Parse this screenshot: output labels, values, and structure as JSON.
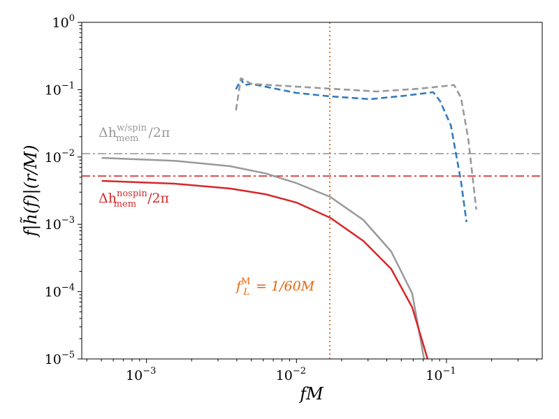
{
  "chart_data": {
    "type": "line",
    "xscale": "log",
    "yscale": "log",
    "xlim": [
      0.00037,
      0.435
    ],
    "ylim": [
      1e-05,
      1
    ],
    "grid": false,
    "xlabel": "fM",
    "ylabel": "f|h̃(f)|(r/M)",
    "x_ticks": [
      {
        "value": 0.001,
        "base": "10",
        "exp": "−3"
      },
      {
        "value": 0.01,
        "base": "10",
        "exp": "−2"
      },
      {
        "value": 0.1,
        "base": "10",
        "exp": "−1"
      }
    ],
    "y_ticks": [
      {
        "value": 1,
        "base": "10",
        "exp": "0"
      },
      {
        "value": 0.1,
        "base": "10",
        "exp": "−1"
      },
      {
        "value": 0.01,
        "base": "10",
        "exp": "−2"
      },
      {
        "value": 0.001,
        "base": "10",
        "exp": "−3"
      },
      {
        "value": 0.0001,
        "base": "10",
        "exp": "−4"
      },
      {
        "value": 1e-05,
        "base": "10",
        "exp": "−5"
      }
    ],
    "series": [
      {
        "style": "solid",
        "color": "#999999",
        "x": [
          0.000503,
          0.00153,
          0.00362,
          0.00621,
          0.00995,
          0.0168,
          0.0279,
          0.0428,
          0.0591,
          0.0709
        ],
        "y": [
          0.0097,
          0.0088,
          0.0073,
          0.0057,
          0.0041,
          0.00255,
          0.00116,
          0.000396,
          9.4e-05,
          1e-05
        ]
      },
      {
        "style": "solid",
        "color": "#d62728",
        "x": [
          0.000503,
          0.00153,
          0.00362,
          0.00621,
          0.00995,
          0.0168,
          0.0279,
          0.0428,
          0.0591,
          0.0748
        ],
        "y": [
          0.00442,
          0.00402,
          0.0034,
          0.0028,
          0.00211,
          0.00125,
          0.000566,
          0.000218,
          5.86e-05,
          1e-05
        ]
      },
      {
        "style": "dashed",
        "color": "#2f7bbf",
        "x": [
          0.00395,
          0.00426,
          0.0045,
          0.005,
          0.00995,
          0.0168,
          0.031,
          0.0531,
          0.0815,
          0.0908,
          0.107,
          0.125,
          0.136
        ],
        "y": [
          0.101,
          0.144,
          0.117,
          0.122,
          0.0896,
          0.0795,
          0.0722,
          0.0814,
          0.0918,
          0.0673,
          0.0292,
          0.0043,
          0.00108
        ]
      },
      {
        "style": "dashed",
        "color": "#999999",
        "x": [
          0.00395,
          0.00426,
          0.005,
          0.0168,
          0.0345,
          0.0658,
          0.1125,
          0.125,
          0.14,
          0.158
        ],
        "y": [
          0.0493,
          0.148,
          0.122,
          0.1035,
          0.094,
          0.1035,
          0.117,
          0.0758,
          0.0181,
          0.00166
        ]
      }
    ],
    "hlines": [
      {
        "y": 0.0112,
        "style": "dashdot",
        "color": "#999999"
      },
      {
        "y": 0.00522,
        "style": "dashdot",
        "color": "#d62728"
      }
    ],
    "vlines": [
      {
        "x": 0.01667,
        "style": "dotted",
        "color": "#e8650a"
      }
    ],
    "annotations": {
      "spin": {
        "base": "Δh",
        "sup": "w/spin",
        "sub": "mem",
        "tail": "/2π",
        "color": "#999999"
      },
      "nospin": {
        "base": "Δh",
        "sup": "nospin",
        "sub": "mem",
        "tail": "/2π",
        "color": "#d62728"
      },
      "flow": {
        "base": "f",
        "sup": "M",
        "sub": "L",
        "tail": " = 1/60M",
        "color": "#e8650a"
      }
    }
  }
}
